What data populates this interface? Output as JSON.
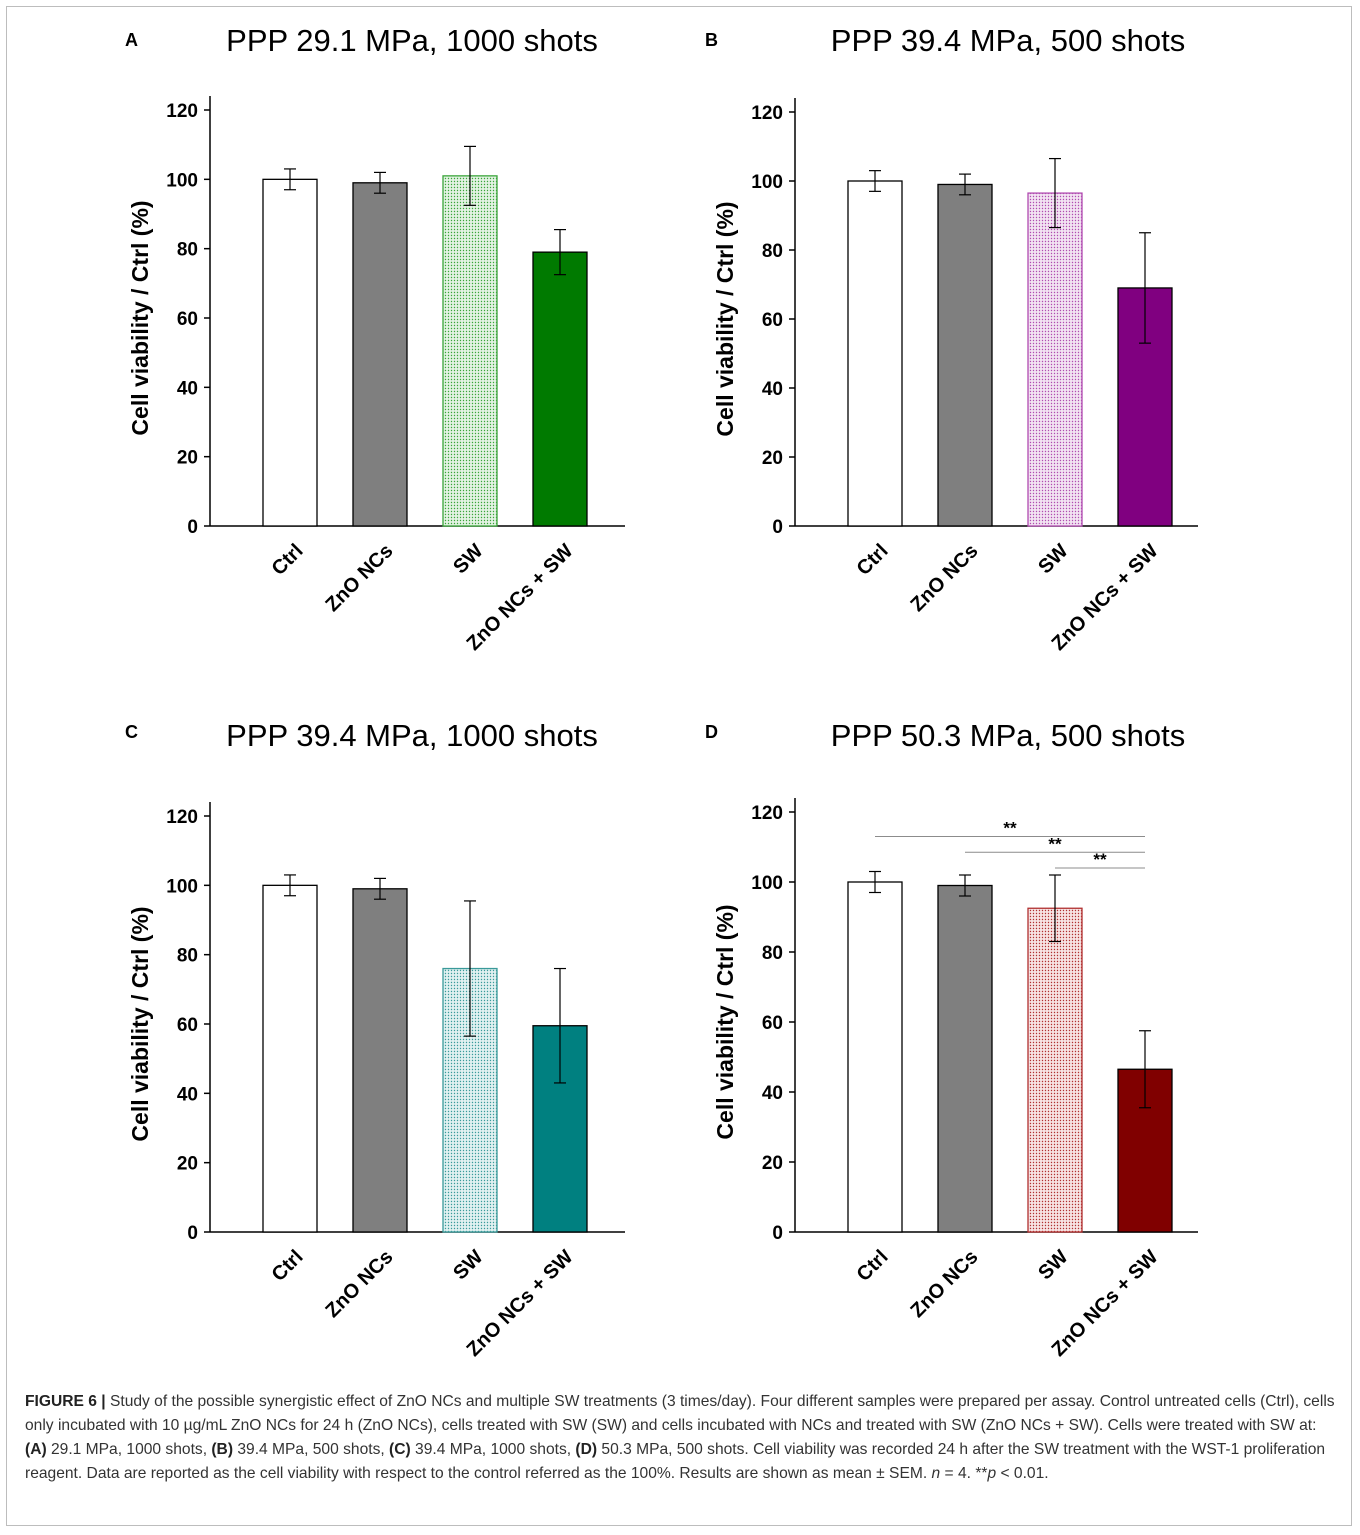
{
  "chart_data": [
    {
      "panel": "A",
      "type": "bar",
      "title": "PPP 29.1 MPa, 1000 shots",
      "ylabel": "Cell viability / Ctrl (%)",
      "ylim": [
        0,
        120
      ],
      "yticks": [
        0,
        20,
        40,
        60,
        80,
        100,
        120
      ],
      "categories": [
        "Ctrl",
        "ZnO NCs",
        "SW",
        "ZnO NCs + SW"
      ],
      "values": [
        100,
        99,
        101,
        79
      ],
      "error": [
        3,
        3,
        8.5,
        6.5
      ],
      "colors": [
        "#ffffff",
        "#7f7f7f",
        "#e3f3e3",
        "#007a00"
      ],
      "edge_colors": [
        "#000000",
        "#000000",
        "#3aa53a",
        "#000000"
      ],
      "significance": []
    },
    {
      "panel": "B",
      "type": "bar",
      "title": "PPP 39.4 MPa, 500 shots",
      "ylabel": "Cell viability / Ctrl (%)",
      "ylim": [
        0,
        120
      ],
      "yticks": [
        0,
        20,
        40,
        60,
        80,
        100,
        120
      ],
      "categories": [
        "Ctrl",
        "ZnO NCs",
        "SW",
        "ZnO NCs + SW"
      ],
      "values": [
        100,
        99,
        96.5,
        69
      ],
      "error": [
        3,
        3,
        10,
        16
      ],
      "colors": [
        "#ffffff",
        "#7f7f7f",
        "#f2e3f2",
        "#800080"
      ],
      "edge_colors": [
        "#000000",
        "#000000",
        "#b04cb0",
        "#000000"
      ],
      "significance": []
    },
    {
      "panel": "C",
      "type": "bar",
      "title": "PPP 39.4 MPa, 1000 shots",
      "ylabel": "Cell viability / Ctrl (%)",
      "ylim": [
        0,
        120
      ],
      "yticks": [
        0,
        20,
        40,
        60,
        80,
        100,
        120
      ],
      "categories": [
        "Ctrl",
        "ZnO NCs",
        "SW",
        "ZnO NCs + SW"
      ],
      "values": [
        100,
        99,
        76,
        59.5
      ],
      "error": [
        3,
        3,
        19.5,
        16.5
      ],
      "colors": [
        "#ffffff",
        "#7f7f7f",
        "#e1f1f1",
        "#008080"
      ],
      "edge_colors": [
        "#000000",
        "#000000",
        "#3a9a9a",
        "#000000"
      ],
      "significance": []
    },
    {
      "panel": "D",
      "type": "bar",
      "title": "PPP 50.3 MPa, 500 shots",
      "ylabel": "Cell viability / Ctrl (%)",
      "ylim": [
        0,
        120
      ],
      "yticks": [
        0,
        20,
        40,
        60,
        80,
        100,
        120
      ],
      "categories": [
        "Ctrl",
        "ZnO NCs",
        "SW",
        "ZnO NCs + SW"
      ],
      "values": [
        100,
        99,
        92.5,
        46.5
      ],
      "error": [
        3,
        3,
        9.5,
        11
      ],
      "colors": [
        "#ffffff",
        "#7f7f7f",
        "#f7e3e3",
        "#800000"
      ],
      "edge_colors": [
        "#000000",
        "#000000",
        "#b03030",
        "#000000"
      ],
      "significance": [
        {
          "from": 0,
          "to": 3,
          "label": "**",
          "y": 113
        },
        {
          "from": 1,
          "to": 3,
          "label": "**",
          "y": 108.5
        },
        {
          "from": 2,
          "to": 3,
          "label": "**",
          "y": 104
        }
      ]
    }
  ],
  "caption": {
    "figure_label": "FIGURE 6 |",
    "p1": " Study of the possible synergistic effect of ZnO NCs and multiple SW treatments (3 times/day). Four different samples were prepared per assay. Control untreated cells (Ctrl), cells only incubated with 10 µg/mL ZnO NCs for 24 h (ZnO NCs), cells treated with SW (SW) and cells incubated with NCs and treated with SW (ZnO NCs + SW). Cells were treated with SW at: ",
    "a_label": "(A)",
    "a_text": " 29.1 MPa, 1000 shots, ",
    "b_label": "(B)",
    "b_text": " 39.4 MPa, 500 shots, ",
    "c_label": "(C)",
    "c_text": " 39.4 MPa, 1000 shots, ",
    "d_label": "(D)",
    "d_text": " 50.3 MPa, 500 shots. Cell viability was recorded 24 h after the SW treatment with the WST-1 proliferation reagent. Data are reported as the cell viability with respect to the control referred as the 100%. Results are shown as mean ± SEM. ",
    "n_var": "n",
    "n_text": " = 4. **",
    "p_var": "p",
    "p_text": " < 0.01."
  }
}
